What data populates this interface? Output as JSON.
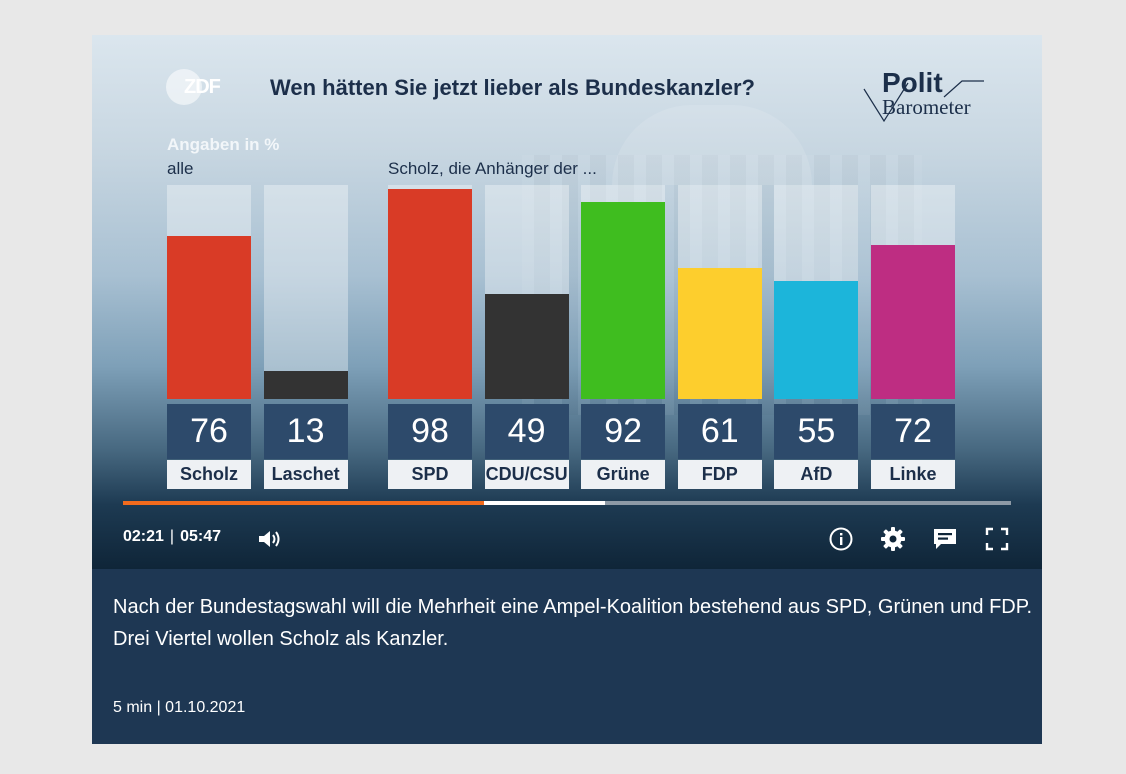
{
  "player": {
    "brand_logo": "ZDF",
    "title": "Wen hätten Sie jetzt lieber als Bundeskanzler?",
    "politbarometer_top": "Polit",
    "politbarometer_bottom": "Barometer",
    "label_unit": "Angaben in %",
    "label_all": "alle",
    "label_supporters": "Scholz, die Anhänger der ..."
  },
  "chart_data": {
    "type": "bar",
    "title": "Wen hätten Sie jetzt lieber als Bundeskanzler?",
    "unit_label": "Angaben in %",
    "ylim": [
      0,
      100
    ],
    "groups": [
      {
        "label": "alle",
        "categories": [
          "Scholz",
          "Laschet"
        ],
        "values": [
          76,
          13
        ],
        "colors": [
          "#d93b26",
          "#333333"
        ]
      },
      {
        "label": "Scholz, die Anhänger der ...",
        "categories": [
          "SPD",
          "CDU/CSU",
          "Grüne",
          "FDP",
          "AfD",
          "Linke"
        ],
        "values": [
          98,
          49,
          92,
          61,
          55,
          72
        ],
        "colors": [
          "#d93b26",
          "#333333",
          "#3fbd1f",
          "#fdce2d",
          "#1cb5da",
          "#be2d82"
        ]
      }
    ]
  },
  "playback": {
    "current_time": "02:21",
    "separator": "|",
    "duration": "05:47",
    "played_fraction": 0.406,
    "buffered_fraction": 0.543
  },
  "controls": {
    "icons": [
      "volume-icon",
      "info-icon",
      "settings-icon",
      "subtitles-icon",
      "fullscreen-icon"
    ]
  },
  "description": {
    "text": "Nach der Bundestagswahl will die Mehrheit eine Ampel-Koalition bestehend aus SPD, Grünen und FDP. Drei Viertel wollen Scholz als Kanzler.",
    "meta": "5 min | 01.10.2021"
  },
  "colors": {
    "spd": "#d93b26",
    "cdu": "#333333",
    "gruene": "#3fbd1f",
    "fdp": "#fdce2d",
    "afd": "#1cb5da",
    "linke": "#be2d82",
    "progress_played": "#f26b1d",
    "info_background": "#1e3753"
  }
}
